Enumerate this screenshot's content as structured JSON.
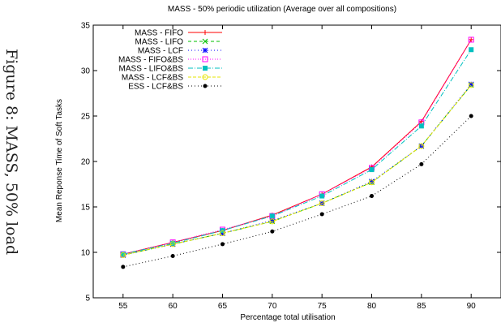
{
  "figure_caption": "Figure 8: MASS, 50% load",
  "chart_data": {
    "type": "line",
    "title": "MASS - 50% periodic utilization (Average over all compositions)",
    "xlabel": "Percentage total utilisation",
    "ylabel": "Mean Reponse Time of Soft Tasks",
    "x": [
      55,
      60,
      65,
      70,
      75,
      80,
      85,
      90
    ],
    "xlim": [
      52,
      93
    ],
    "ylim": [
      5,
      35
    ],
    "xticks": [
      55,
      60,
      65,
      70,
      75,
      80,
      85,
      90
    ],
    "yticks": [
      5,
      10,
      15,
      20,
      25,
      30,
      35
    ],
    "legend_position": "top-left",
    "grid": false,
    "series": [
      {
        "name": "MASS - FIFO",
        "color": "#ff0000",
        "marker": "plus",
        "dash": "",
        "values": [
          9.8,
          11.1,
          12.4,
          14.1,
          16.4,
          19.4,
          24.4,
          33.4
        ]
      },
      {
        "name": "MASS - LIFO",
        "color": "#00c000",
        "marker": "x",
        "dash": "4,3",
        "values": [
          9.7,
          10.9,
          12.1,
          13.4,
          15.4,
          17.7,
          21.7,
          28.4
        ]
      },
      {
        "name": "MASS - LCF",
        "color": "#0000ff",
        "marker": "star",
        "dash": "1,3",
        "values": [
          9.7,
          10.9,
          12.1,
          13.5,
          15.4,
          17.8,
          21.7,
          28.5
        ]
      },
      {
        "name": "MASS - FIFO&BS",
        "color": "#ff00ff",
        "marker": "square-open",
        "dash": "1,2",
        "values": [
          9.8,
          11.1,
          12.5,
          14.0,
          16.4,
          19.3,
          24.3,
          33.4
        ]
      },
      {
        "name": "MASS - LIFO&BS",
        "color": "#00c0c0",
        "marker": "square-filled",
        "dash": "6,2,1,2",
        "values": [
          9.8,
          11.0,
          12.4,
          14.0,
          16.2,
          19.1,
          23.9,
          32.3
        ]
      },
      {
        "name": "MASS - LCF&BS",
        "color": "#e6e600",
        "marker": "circle-open",
        "dash": "4,2",
        "values": [
          9.7,
          10.9,
          12.1,
          13.4,
          15.4,
          17.7,
          21.7,
          28.4
        ]
      },
      {
        "name": "ESS - LCF&BS",
        "color": "#000000",
        "marker": "circle-filled",
        "dash": "1,3",
        "values": [
          8.4,
          9.6,
          10.9,
          12.3,
          14.2,
          16.2,
          19.7,
          25.0
        ]
      }
    ]
  }
}
